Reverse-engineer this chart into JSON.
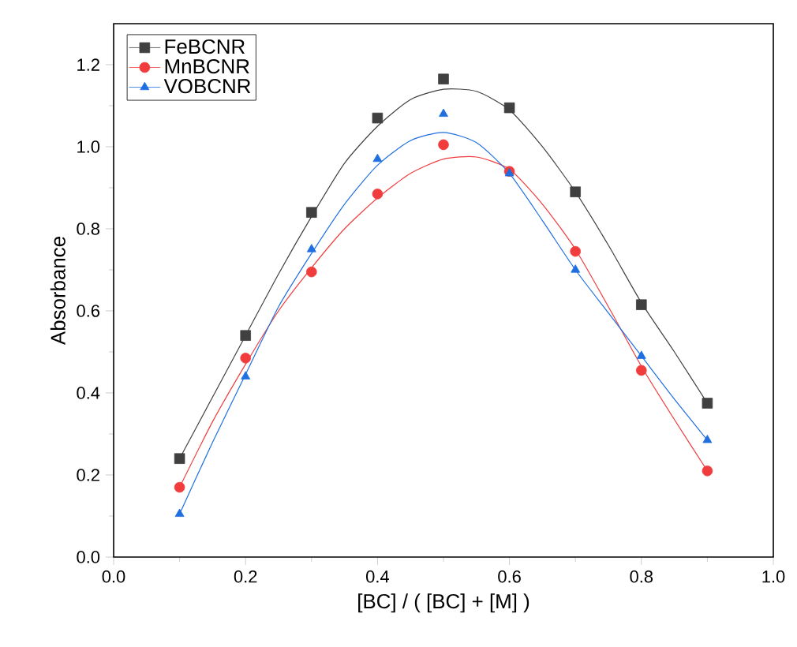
{
  "chart_data": {
    "type": "scatter",
    "xlabel": "[BC] / ( [BC] + [M] )",
    "ylabel": "Absorbance",
    "x": [
      0.1,
      0.2,
      0.3,
      0.4,
      0.5,
      0.6,
      0.7,
      0.8,
      0.9
    ],
    "series": [
      {
        "name": "FeBCNR",
        "color": "#404040",
        "marker": "square",
        "values": [
          0.24,
          0.54,
          0.84,
          1.07,
          1.165,
          1.095,
          0.89,
          0.615,
          0.375
        ]
      },
      {
        "name": "MnBCNR",
        "color": "#f03c3c",
        "marker": "circle",
        "values": [
          0.17,
          0.485,
          0.695,
          0.885,
          1.005,
          0.94,
          0.745,
          0.455,
          0.21
        ]
      },
      {
        "name": "VOBCNR",
        "color": "#1f6fe0",
        "marker": "triangle",
        "values": [
          0.105,
          0.44,
          0.75,
          0.97,
          1.08,
          0.935,
          0.7,
          0.49,
          0.285
        ]
      },
      {
        "type": "line",
        "color": "#404040",
        "marker": "none",
        "line_style": "solid",
        "x": [
          0.1,
          0.15,
          0.2,
          0.25,
          0.3,
          0.35,
          0.4,
          0.45,
          0.5,
          0.55,
          0.6,
          0.65,
          0.7,
          0.75,
          0.8,
          0.85,
          0.9
        ],
        "values": [
          0.24,
          0.39,
          0.54,
          0.69,
          0.83,
          0.96,
          1.05,
          1.115,
          1.14,
          1.135,
          1.09,
          1.0,
          0.89,
          0.76,
          0.62,
          0.5,
          0.375
        ]
      },
      {
        "type": "line",
        "color": "#f03c3c",
        "marker": "none",
        "line_style": "solid",
        "x": [
          0.1,
          0.15,
          0.2,
          0.25,
          0.3,
          0.35,
          0.4,
          0.45,
          0.5,
          0.55,
          0.6,
          0.65,
          0.7,
          0.75,
          0.8,
          0.85,
          0.9
        ],
        "values": [
          0.17,
          0.33,
          0.47,
          0.6,
          0.705,
          0.8,
          0.875,
          0.935,
          0.97,
          0.975,
          0.945,
          0.86,
          0.75,
          0.61,
          0.465,
          0.335,
          0.21
        ]
      },
      {
        "type": "line",
        "color": "#1f6fe0",
        "marker": "none",
        "line_style": "solid",
        "x": [
          0.1,
          0.15,
          0.2,
          0.25,
          0.3,
          0.35,
          0.4,
          0.45,
          0.5,
          0.55,
          0.6,
          0.65,
          0.7,
          0.75,
          0.8,
          0.85,
          0.9
        ],
        "values": [
          0.105,
          0.28,
          0.445,
          0.61,
          0.74,
          0.86,
          0.955,
          1.015,
          1.035,
          1.01,
          0.935,
          0.82,
          0.7,
          0.595,
          0.49,
          0.385,
          0.285
        ]
      }
    ],
    "xlim": [
      0,
      1
    ],
    "ylim": [
      0,
      1.3
    ],
    "xticks": [
      {
        "value": 0,
        "label": "0.0"
      },
      0.2,
      0.4,
      0.6,
      0.8,
      {
        "value": 1,
        "label": "1.0"
      }
    ],
    "yticks": [
      {
        "value": 0,
        "label": "0.0"
      },
      0.2,
      0.4,
      0.6,
      0.8,
      {
        "value": 1,
        "label": "1.0"
      },
      1.2
    ],
    "legend": "top left",
    "grid": false
  }
}
